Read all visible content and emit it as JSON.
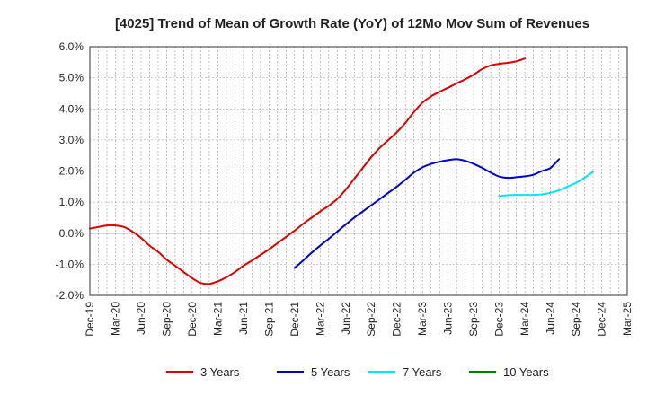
{
  "chart_data": {
    "type": "line",
    "title": "[4025]  Trend of Mean of Growth Rate (YoY) of 12Mo Mov Sum of Revenues",
    "xlabel": "",
    "ylabel": "",
    "x_tick_labels": [
      "Dec-19",
      "Mar-20",
      "Jun-20",
      "Sep-20",
      "Dec-20",
      "Mar-21",
      "Jun-21",
      "Sep-21",
      "Dec-21",
      "Mar-22",
      "Jun-22",
      "Sep-22",
      "Dec-22",
      "Mar-23",
      "Jun-23",
      "Sep-23",
      "Dec-23",
      "Mar-24",
      "Jun-24",
      "Sep-24",
      "Dec-24",
      "Mar-25"
    ],
    "y_tick_labels": [
      "6.0%",
      "5.0%",
      "4.0%",
      "3.0%",
      "2.0%",
      "1.0%",
      "0.0%",
      "-1.0%",
      "-2.0%"
    ],
    "ylim": [
      -2.0,
      6.0
    ],
    "grid": true,
    "legend_position": "bottom",
    "series": [
      {
        "name": "3 Years",
        "color": "#dd0000",
        "start": 0,
        "values": [
          0.15,
          0.2,
          0.25,
          0.25,
          0.2,
          0.05,
          -0.15,
          -0.4,
          -0.6,
          -0.85,
          -1.05,
          -1.25,
          -1.45,
          -1.6,
          -1.63,
          -1.55,
          -1.42,
          -1.25,
          -1.05,
          -0.88,
          -0.7,
          -0.52,
          -0.32,
          -0.12,
          0.08,
          0.3,
          0.5,
          0.7,
          0.88,
          1.1,
          1.4,
          1.75,
          2.1,
          2.45,
          2.75,
          3.0,
          3.25,
          3.55,
          3.9,
          4.2,
          4.4,
          4.55,
          4.68,
          4.82,
          4.95,
          5.1,
          5.28,
          5.4,
          5.45,
          5.48,
          5.53,
          5.62
        ]
      },
      {
        "name": "5 Years",
        "color": "#0000cc",
        "start": 24,
        "values": [
          -1.12,
          -0.88,
          -0.63,
          -0.4,
          -0.18,
          0.05,
          0.28,
          0.5,
          0.7,
          0.9,
          1.1,
          1.3,
          1.5,
          1.72,
          1.95,
          2.12,
          2.23,
          2.3,
          2.35,
          2.38,
          2.33,
          2.23,
          2.1,
          1.95,
          1.82,
          1.78,
          1.8,
          1.83,
          1.88,
          2.0,
          2.1,
          2.38
        ]
      },
      {
        "name": "7 Years",
        "color": "#00e5ee",
        "start": 48,
        "values": [
          1.2,
          1.22,
          1.23,
          1.23,
          1.23,
          1.25,
          1.3,
          1.38,
          1.5,
          1.62,
          1.78,
          1.98
        ]
      },
      {
        "name": "10 Years",
        "color": "#008000",
        "start": 0,
        "values": []
      }
    ]
  }
}
